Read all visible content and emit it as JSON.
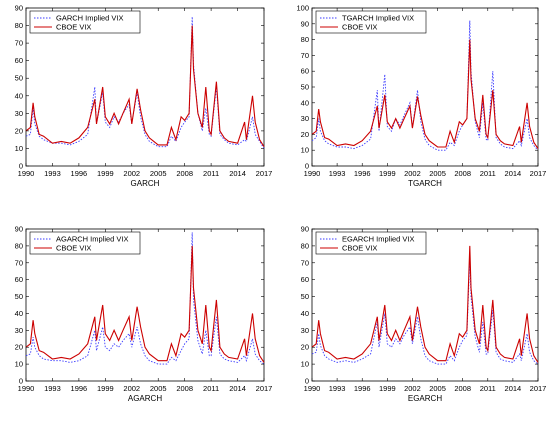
{
  "colors": {
    "implied": "#3b3bff",
    "cboe": "#cc0000",
    "axis": "#000000",
    "background": "#ffffff"
  },
  "chart_data": [
    {
      "type": "line",
      "title": "",
      "xlabel": "GARCH",
      "ylabel": "",
      "xlim": [
        1990,
        2017
      ],
      "ylim": [
        0,
        90
      ],
      "xticks": [
        "1990",
        "1993",
        "1996",
        "1999",
        "2002",
        "2005",
        "2008",
        "2011",
        "2014",
        "2017"
      ],
      "yticks": [
        "0",
        "10",
        "20",
        "30",
        "40",
        "50",
        "60",
        "70",
        "80",
        "90"
      ],
      "grid": false,
      "legend": "top-left",
      "series": [
        {
          "name": "GARCH Implied VIX",
          "style": "dotted",
          "x": [
            1990.0,
            1990.5,
            1990.8,
            1991.0,
            1991.5,
            1992.0,
            1993.0,
            1994.0,
            1995.0,
            1996.0,
            1997.0,
            1997.8,
            1998.0,
            1998.7,
            1999.0,
            1999.5,
            2000.0,
            2000.5,
            2001.0,
            2001.7,
            2002.0,
            2002.6,
            2003.0,
            2003.5,
            2004.0,
            2005.0,
            2006.0,
            2006.5,
            2007.0,
            2007.6,
            2008.0,
            2008.5,
            2008.85,
            2009.0,
            2009.5,
            2010.0,
            2010.4,
            2010.8,
            2011.0,
            2011.6,
            2012.0,
            2012.5,
            2013.0,
            2014.0,
            2014.8,
            2015.0,
            2015.7,
            2016.0,
            2016.5,
            2017.0
          ],
          "y": [
            17,
            18,
            33,
            24,
            17,
            15,
            13,
            13,
            12,
            14,
            18,
            45,
            24,
            42,
            25,
            22,
            28,
            25,
            30,
            35,
            24,
            42,
            28,
            18,
            14,
            11,
            11,
            17,
            14,
            22,
            25,
            28,
            85,
            58,
            30,
            20,
            33,
            18,
            17,
            45,
            18,
            15,
            13,
            12,
            15,
            14,
            28,
            18,
            14,
            10
          ]
        },
        {
          "name": "CBOE VIX",
          "style": "solid",
          "x": [
            1990.0,
            1990.5,
            1990.8,
            1991.0,
            1991.5,
            1992.0,
            1993.0,
            1994.0,
            1995.0,
            1996.0,
            1997.0,
            1997.8,
            1998.0,
            1998.7,
            1999.0,
            1999.5,
            2000.0,
            2000.5,
            2001.0,
            2001.7,
            2002.0,
            2002.6,
            2003.0,
            2003.5,
            2004.0,
            2005.0,
            2006.0,
            2006.5,
            2007.0,
            2007.6,
            2008.0,
            2008.5,
            2008.85,
            2009.0,
            2009.5,
            2010.0,
            2010.4,
            2010.8,
            2011.0,
            2011.6,
            2012.0,
            2012.5,
            2013.0,
            2014.0,
            2014.8,
            2015.0,
            2015.7,
            2016.0,
            2016.5,
            2017.0
          ],
          "y": [
            20,
            22,
            36,
            28,
            18,
            17,
            13,
            14,
            13,
            16,
            22,
            38,
            24,
            45,
            28,
            24,
            30,
            24,
            30,
            38,
            24,
            44,
            32,
            20,
            16,
            12,
            12,
            22,
            15,
            28,
            26,
            30,
            80,
            55,
            30,
            22,
            45,
            20,
            18,
            48,
            20,
            16,
            14,
            13,
            25,
            15,
            40,
            25,
            15,
            11
          ]
        }
      ]
    },
    {
      "type": "line",
      "title": "",
      "xlabel": "TGARCH",
      "ylabel": "",
      "xlim": [
        1990,
        2017
      ],
      "ylim": [
        0,
        100
      ],
      "xticks": [
        "1990",
        "1993",
        "1996",
        "1999",
        "2002",
        "2005",
        "2008",
        "2011",
        "2014",
        "2017"
      ],
      "yticks": [
        "0",
        "10",
        "20",
        "30",
        "40",
        "50",
        "60",
        "70",
        "80",
        "90",
        "100"
      ],
      "grid": false,
      "legend": "top-left",
      "series": [
        {
          "name": "TGARCH Implied VIX",
          "style": "dotted",
          "x": [
            1990.0,
            1990.5,
            1990.8,
            1991.0,
            1991.5,
            1992.0,
            1993.0,
            1994.0,
            1995.0,
            1996.0,
            1997.0,
            1997.8,
            1998.0,
            1998.7,
            1999.0,
            1999.5,
            2000.0,
            2000.5,
            2001.0,
            2001.7,
            2002.0,
            2002.6,
            2003.0,
            2003.5,
            2004.0,
            2005.0,
            2006.0,
            2006.5,
            2007.0,
            2007.6,
            2008.0,
            2008.5,
            2008.85,
            2009.0,
            2009.5,
            2010.0,
            2010.4,
            2010.8,
            2011.0,
            2011.6,
            2012.0,
            2012.5,
            2013.0,
            2014.0,
            2014.8,
            2015.0,
            2015.7,
            2016.0,
            2016.5,
            2017.0
          ],
          "y": [
            16,
            18,
            30,
            22,
            16,
            14,
            12,
            12,
            11,
            13,
            17,
            48,
            22,
            58,
            25,
            22,
            30,
            26,
            32,
            40,
            24,
            48,
            28,
            17,
            13,
            10,
            10,
            15,
            13,
            22,
            26,
            30,
            92,
            60,
            28,
            18,
            40,
            17,
            16,
            60,
            18,
            14,
            12,
            11,
            16,
            13,
            30,
            18,
            13,
            10
          ]
        },
        {
          "name": "CBOE VIX",
          "style": "solid",
          "x": [
            1990.0,
            1990.5,
            1990.8,
            1991.0,
            1991.5,
            1992.0,
            1993.0,
            1994.0,
            1995.0,
            1996.0,
            1997.0,
            1997.8,
            1998.0,
            1998.7,
            1999.0,
            1999.5,
            2000.0,
            2000.5,
            2001.0,
            2001.7,
            2002.0,
            2002.6,
            2003.0,
            2003.5,
            2004.0,
            2005.0,
            2006.0,
            2006.5,
            2007.0,
            2007.6,
            2008.0,
            2008.5,
            2008.85,
            2009.0,
            2009.5,
            2010.0,
            2010.4,
            2010.8,
            2011.0,
            2011.6,
            2012.0,
            2012.5,
            2013.0,
            2014.0,
            2014.8,
            2015.0,
            2015.7,
            2016.0,
            2016.5,
            2017.0
          ],
          "y": [
            20,
            22,
            36,
            28,
            18,
            17,
            13,
            14,
            13,
            16,
            22,
            38,
            24,
            45,
            28,
            24,
            30,
            24,
            30,
            38,
            24,
            44,
            32,
            20,
            16,
            12,
            12,
            22,
            15,
            28,
            26,
            30,
            80,
            55,
            30,
            22,
            45,
            20,
            18,
            48,
            20,
            16,
            14,
            13,
            25,
            15,
            40,
            25,
            15,
            11
          ]
        }
      ]
    },
    {
      "type": "line",
      "title": "",
      "xlabel": "AGARCH",
      "ylabel": "",
      "xlim": [
        1990,
        2017
      ],
      "ylim": [
        0,
        90
      ],
      "xticks": [
        "1990",
        "1993",
        "1996",
        "1999",
        "2002",
        "2005",
        "2008",
        "2011",
        "2014",
        "2017"
      ],
      "yticks": [
        "0",
        "10",
        "20",
        "30",
        "40",
        "50",
        "60",
        "70",
        "80",
        "90"
      ],
      "grid": false,
      "legend": "top-left",
      "series": [
        {
          "name": "AGARCH Implied VIX",
          "style": "dotted",
          "x": [
            1990.0,
            1990.5,
            1990.8,
            1991.0,
            1991.5,
            1992.0,
            1993.0,
            1994.0,
            1995.0,
            1996.0,
            1997.0,
            1997.8,
            1998.0,
            1998.7,
            1999.0,
            1999.5,
            2000.0,
            2000.5,
            2001.0,
            2001.7,
            2002.0,
            2002.6,
            2003.0,
            2003.5,
            2004.0,
            2005.0,
            2006.0,
            2006.5,
            2007.0,
            2007.6,
            2008.0,
            2008.5,
            2008.85,
            2009.0,
            2009.5,
            2010.0,
            2010.4,
            2010.8,
            2011.0,
            2011.6,
            2012.0,
            2012.5,
            2013.0,
            2014.0,
            2014.8,
            2015.0,
            2015.7,
            2016.0,
            2016.5,
            2017.0
          ],
          "y": [
            15,
            16,
            26,
            20,
            15,
            13,
            12,
            12,
            11,
            12,
            15,
            30,
            18,
            32,
            20,
            18,
            22,
            20,
            24,
            28,
            20,
            32,
            22,
            15,
            12,
            10,
            10,
            14,
            12,
            18,
            22,
            25,
            88,
            48,
            24,
            16,
            30,
            15,
            15,
            38,
            16,
            13,
            12,
            11,
            15,
            12,
            25,
            16,
            12,
            10
          ]
        },
        {
          "name": "CBOE VIX",
          "style": "solid",
          "x": [
            1990.0,
            1990.5,
            1990.8,
            1991.0,
            1991.5,
            1992.0,
            1993.0,
            1994.0,
            1995.0,
            1996.0,
            1997.0,
            1997.8,
            1998.0,
            1998.7,
            1999.0,
            1999.5,
            2000.0,
            2000.5,
            2001.0,
            2001.7,
            2002.0,
            2002.6,
            2003.0,
            2003.5,
            2004.0,
            2005.0,
            2006.0,
            2006.5,
            2007.0,
            2007.6,
            2008.0,
            2008.5,
            2008.85,
            2009.0,
            2009.5,
            2010.0,
            2010.4,
            2010.8,
            2011.0,
            2011.6,
            2012.0,
            2012.5,
            2013.0,
            2014.0,
            2014.8,
            2015.0,
            2015.7,
            2016.0,
            2016.5,
            2017.0
          ],
          "y": [
            20,
            22,
            36,
            28,
            18,
            17,
            13,
            14,
            13,
            16,
            22,
            38,
            24,
            45,
            28,
            24,
            30,
            24,
            30,
            38,
            24,
            44,
            32,
            20,
            16,
            12,
            12,
            22,
            15,
            28,
            26,
            30,
            80,
            55,
            30,
            22,
            45,
            20,
            18,
            48,
            20,
            16,
            14,
            13,
            25,
            15,
            40,
            25,
            15,
            11
          ]
        }
      ]
    },
    {
      "type": "line",
      "title": "",
      "xlabel": "EGARCH",
      "ylabel": "",
      "xlim": [
        1990,
        2017
      ],
      "ylim": [
        0,
        90
      ],
      "xticks": [
        "1990",
        "1993",
        "1996",
        "1999",
        "2002",
        "2005",
        "2008",
        "2011",
        "2014",
        "2017"
      ],
      "yticks": [
        "0",
        "10",
        "20",
        "30",
        "40",
        "50",
        "60",
        "70",
        "80",
        "90"
      ],
      "grid": false,
      "legend": "top-left",
      "series": [
        {
          "name": "EGARCH Implied VIX",
          "style": "dotted",
          "x": [
            1990.0,
            1990.5,
            1990.8,
            1991.0,
            1991.5,
            1992.0,
            1993.0,
            1994.0,
            1995.0,
            1996.0,
            1997.0,
            1997.8,
            1998.0,
            1998.7,
            1999.0,
            1999.5,
            2000.0,
            2000.5,
            2001.0,
            2001.7,
            2002.0,
            2002.6,
            2003.0,
            2003.5,
            2004.0,
            2005.0,
            2006.0,
            2006.5,
            2007.0,
            2007.6,
            2008.0,
            2008.5,
            2008.85,
            2009.0,
            2009.5,
            2010.0,
            2010.4,
            2010.8,
            2011.0,
            2011.6,
            2012.0,
            2012.5,
            2013.0,
            2014.0,
            2014.8,
            2015.0,
            2015.7,
            2016.0,
            2016.5,
            2017.0
          ],
          "y": [
            16,
            17,
            28,
            21,
            15,
            13,
            11,
            12,
            11,
            13,
            16,
            35,
            20,
            40,
            22,
            20,
            25,
            22,
            27,
            32,
            22,
            38,
            25,
            15,
            12,
            10,
            10,
            15,
            12,
            20,
            24,
            27,
            72,
            50,
            26,
            17,
            35,
            16,
            16,
            42,
            17,
            13,
            12,
            11,
            16,
            12,
            28,
            17,
            12,
            10
          ]
        },
        {
          "name": "CBOE VIX",
          "style": "solid",
          "x": [
            1990.0,
            1990.5,
            1990.8,
            1991.0,
            1991.5,
            1992.0,
            1993.0,
            1994.0,
            1995.0,
            1996.0,
            1997.0,
            1997.8,
            1998.0,
            1998.7,
            1999.0,
            1999.5,
            2000.0,
            2000.5,
            2001.0,
            2001.7,
            2002.0,
            2002.6,
            2003.0,
            2003.5,
            2004.0,
            2005.0,
            2006.0,
            2006.5,
            2007.0,
            2007.6,
            2008.0,
            2008.5,
            2008.85,
            2009.0,
            2009.5,
            2010.0,
            2010.4,
            2010.8,
            2011.0,
            2011.6,
            2012.0,
            2012.5,
            2013.0,
            2014.0,
            2014.8,
            2015.0,
            2015.7,
            2016.0,
            2016.5,
            2017.0
          ],
          "y": [
            20,
            22,
            36,
            28,
            18,
            17,
            13,
            14,
            13,
            16,
            22,
            38,
            24,
            45,
            28,
            24,
            30,
            24,
            30,
            38,
            24,
            44,
            32,
            20,
            16,
            12,
            12,
            22,
            15,
            28,
            26,
            30,
            80,
            55,
            30,
            22,
            45,
            20,
            18,
            48,
            20,
            16,
            14,
            13,
            25,
            15,
            40,
            25,
            15,
            11
          ]
        }
      ]
    }
  ]
}
